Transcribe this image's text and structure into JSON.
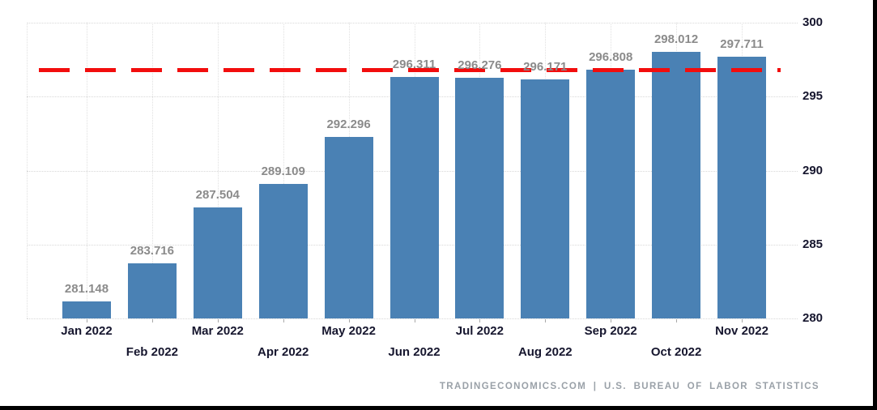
{
  "chart_data": {
    "type": "bar",
    "title": "",
    "categories": [
      "Jan 2022",
      "Feb 2022",
      "Mar 2022",
      "Apr 2022",
      "May 2022",
      "Jun 2022",
      "Jul 2022",
      "Aug 2022",
      "Sep 2022",
      "Oct 2022",
      "Nov 2022"
    ],
    "values": [
      281.148,
      283.716,
      287.504,
      289.109,
      292.296,
      296.311,
      296.276,
      296.171,
      296.808,
      298.012,
      297.711
    ],
    "value_label_decimals": 3,
    "xlabel": "",
    "ylabel": "",
    "ylim": [
      280,
      300
    ],
    "yticks": [
      280,
      285,
      290,
      295,
      300
    ],
    "y_axis_side": "right",
    "grid": true,
    "legend_position": "none",
    "reference_line": {
      "value": 296.808,
      "style": "dashed",
      "color": "#f20d0d"
    },
    "colors": {
      "bar": "#4a81b4",
      "value_label": "#8b8b8b",
      "axis_label": "#16162e",
      "gridline": "#d8d8d8",
      "background": "#ffffff"
    }
  },
  "footer": {
    "attribution": "TRADINGECONOMICS.COM | U.S. BUREAU OF LABOR STATISTICS"
  }
}
